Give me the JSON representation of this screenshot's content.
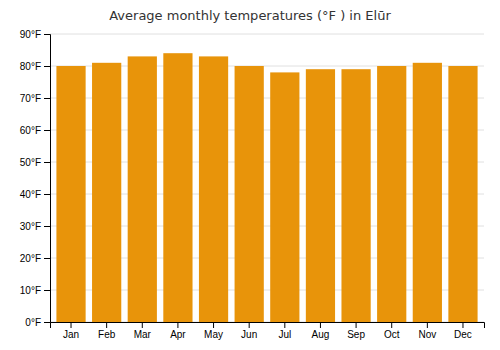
{
  "chart_data": {
    "type": "bar",
    "title": "Average monthly temperatures (°F ) in Elūr",
    "categories": [
      "Jan",
      "Feb",
      "Mar",
      "Apr",
      "May",
      "Jun",
      "Jul",
      "Aug",
      "Sep",
      "Oct",
      "Nov",
      "Dec"
    ],
    "values": [
      80,
      81,
      83,
      84,
      83,
      80,
      78,
      79,
      79,
      80,
      81,
      80
    ],
    "color": "#E8940A",
    "ylim": [
      0,
      90
    ],
    "yticks": [
      {
        "value": 0,
        "label": "0°F"
      },
      {
        "value": 10,
        "label": "10°F"
      },
      {
        "value": 20,
        "label": "20°F"
      },
      {
        "value": 30,
        "label": "30°F"
      },
      {
        "value": 40,
        "label": "40°F"
      },
      {
        "value": 50,
        "label": "50°F"
      },
      {
        "value": 60,
        "label": "60°F"
      },
      {
        "value": 70,
        "label": "70°F"
      },
      {
        "value": 80,
        "label": "80°F"
      },
      {
        "value": 90,
        "label": "90°F"
      }
    ],
    "grid": true
  }
}
